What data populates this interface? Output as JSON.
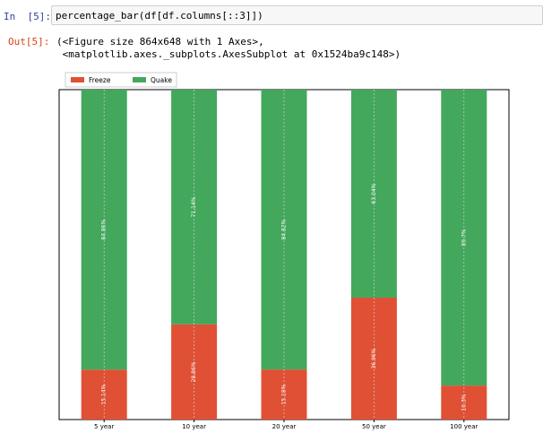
{
  "cell": {
    "in_prompt": "In  [5]:",
    "code": "percentage_bar(df[df.columns[::3]])",
    "out_prompt": "Out[5]:",
    "output_lines": [
      "(<Figure size 864x648 with 1 Axes>,",
      " <matplotlib.axes._subplots.AxesSubplot at 0x1524ba9c148>)"
    ]
  },
  "colors": {
    "freeze": "#e05034",
    "quake": "#43a85c",
    "prompt_in": "#303f9f",
    "prompt_out": "#d84315"
  },
  "chart_data": {
    "type": "bar",
    "stacked": true,
    "categories": [
      "5 year",
      "10 year",
      "20 year",
      "50 year",
      "100 year"
    ],
    "series": [
      {
        "name": "Freeze",
        "values": [
          15.14,
          28.86,
          15.18,
          36.96,
          10.3
        ],
        "labels": [
          "15.14%",
          "28.86%",
          "15.18%",
          "36.96%",
          "10.3%"
        ]
      },
      {
        "name": "Quake",
        "values": [
          84.86,
          71.14,
          84.82,
          63.04,
          89.7
        ],
        "labels": [
          "84.86%",
          "71.14%",
          "84.82%",
          "63.04%",
          "89.7%"
        ]
      }
    ],
    "ylim": [
      0,
      100
    ],
    "legend": "top-left",
    "grid": true,
    "title": "",
    "xlabel": "",
    "ylabel": ""
  }
}
